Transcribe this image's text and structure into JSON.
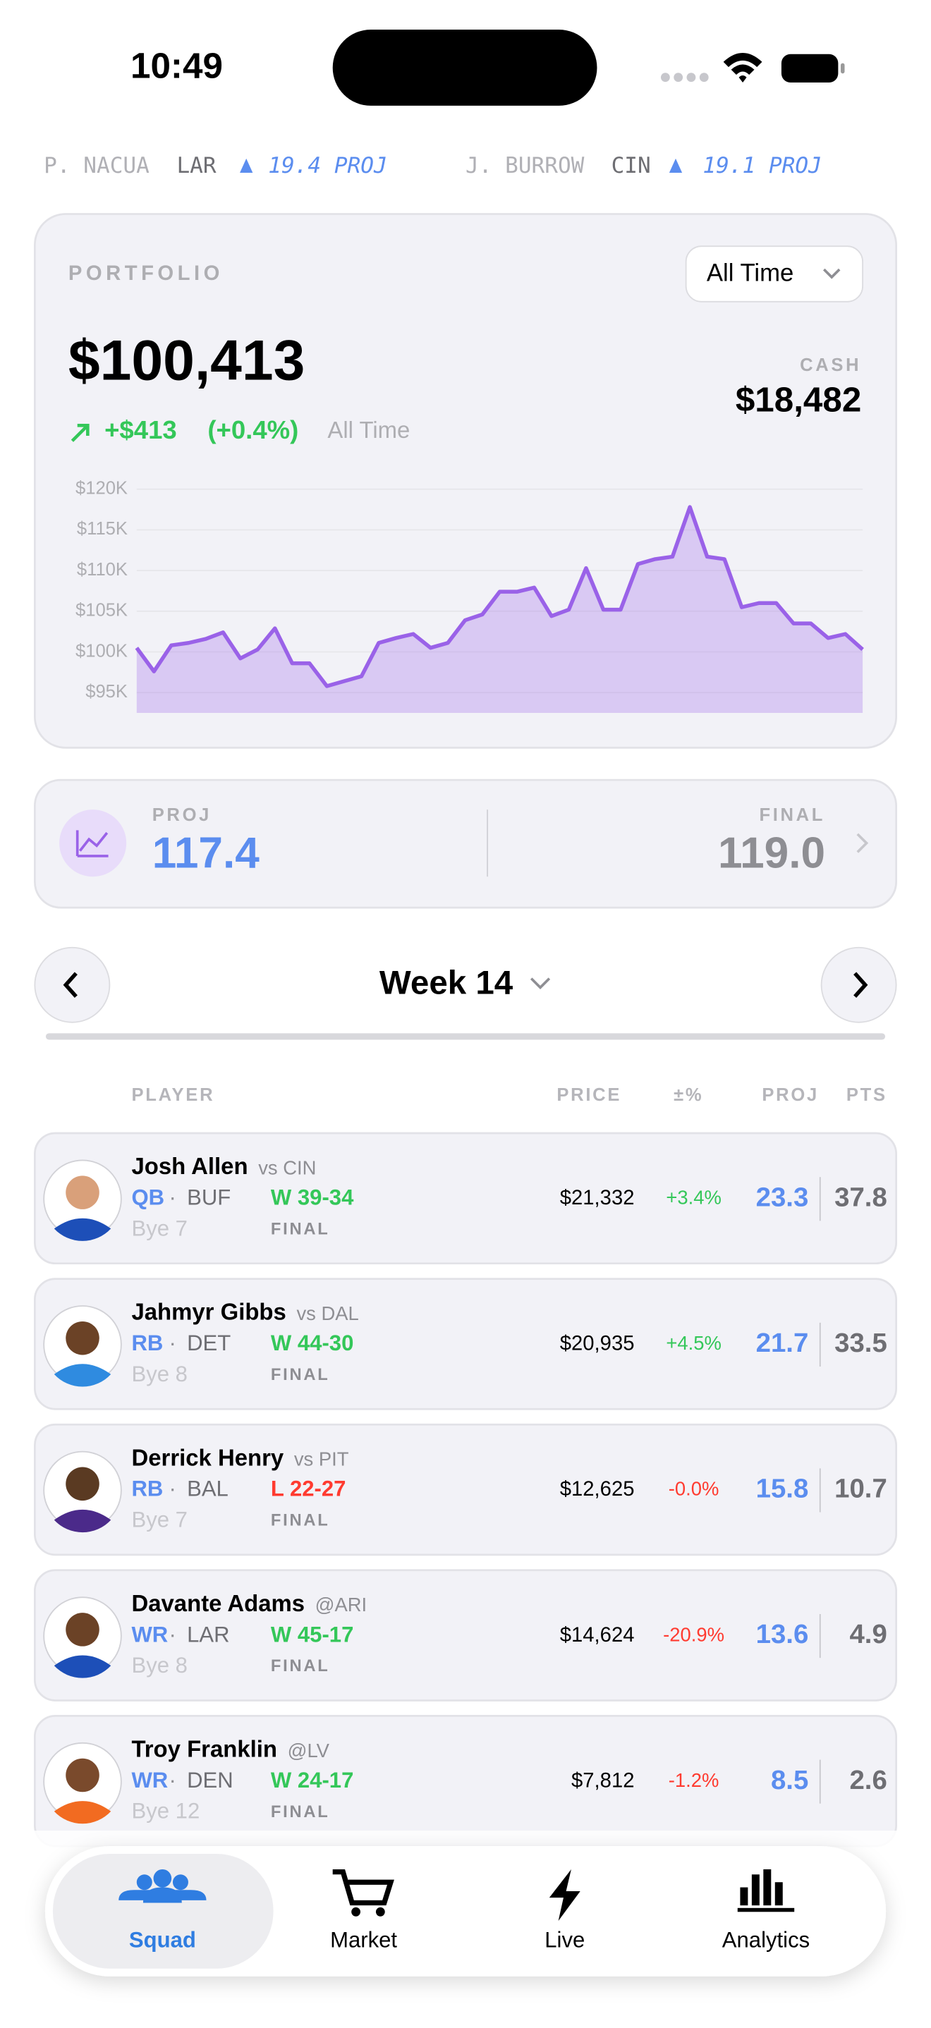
{
  "status": {
    "time": "10:49"
  },
  "ticker": [
    {
      "name": "P. NACUA",
      "team": "LAR",
      "proj": "19.4 PROJ"
    },
    {
      "name": "J. BURROW",
      "team": "CIN",
      "proj": "19.1 PROJ"
    }
  ],
  "portfolio": {
    "label": "PORTFOLIO",
    "range": "All Time",
    "value": "$100,413",
    "change": "+$413",
    "change_pct": "(+0.4%)",
    "period": "All Time",
    "cash_label": "CASH",
    "cash": "$18,482",
    "chart": {
      "type": "line",
      "color": "#9a62e8",
      "values": [
        100500,
        97600,
        100800,
        101100,
        101600,
        102400,
        99200,
        100300,
        102900,
        98600,
        98600,
        95800,
        96400,
        97000,
        101100,
        101700,
        102200,
        100500,
        101100,
        103900,
        104600,
        107400,
        107400,
        107900,
        104400,
        105200,
        110300,
        105200,
        105200,
        110800,
        111400,
        111700,
        117800,
        111700,
        111400,
        105500,
        106000,
        106000,
        103500,
        103500,
        101700,
        102200,
        100300
      ],
      "ylim": [
        92500,
        121500
      ],
      "yticks": [
        {
          "value": 95000,
          "label": "$95K"
        },
        {
          "value": 100000,
          "label": "$100K"
        },
        {
          "value": 105000,
          "label": "$105K"
        },
        {
          "value": 110000,
          "label": "$110K"
        },
        {
          "value": 115000,
          "label": "$115K"
        },
        {
          "value": 120000,
          "label": "$120K"
        }
      ],
      "grid": true
    }
  },
  "projection": {
    "proj_label": "PROJ",
    "proj": "117.4",
    "final_label": "FINAL",
    "final": "119.0"
  },
  "week": {
    "label": "Week 14"
  },
  "table": {
    "headers": [
      "PLAYER",
      "PRICE",
      "±%",
      "PROJ",
      "PTS"
    ],
    "rows": [
      {
        "name": "Josh Allen",
        "opp": "vs CIN",
        "pos": "QB",
        "team": "BUF",
        "result": "W 39-34",
        "bye": "Bye 7",
        "status": "FINAL",
        "price": "$21,332",
        "change": "+3.4%",
        "proj": "23.3",
        "pts": "37.8"
      },
      {
        "name": "Jahmyr Gibbs",
        "opp": "vs DAL",
        "pos": "RB",
        "team": "DET",
        "result": "W 44-30",
        "bye": "Bye 8",
        "status": "FINAL",
        "price": "$20,935",
        "change": "+4.5%",
        "proj": "21.7",
        "pts": "33.5"
      },
      {
        "name": "Derrick Henry",
        "opp": "vs PIT",
        "pos": "RB",
        "team": "BAL",
        "result": "L 22-27",
        "bye": "Bye 7",
        "status": "FINAL",
        "price": "$12,625",
        "change": "-0.0%",
        "proj": "15.8",
        "pts": "10.7"
      },
      {
        "name": "Davante Adams",
        "opp": "@ARI",
        "pos": "WR",
        "team": "LAR",
        "result": "W 45-17",
        "bye": "Bye 8",
        "status": "FINAL",
        "price": "$14,624",
        "change": "-20.9%",
        "proj": "13.6",
        "pts": "4.9"
      },
      {
        "name": "Troy Franklin",
        "opp": "@LV",
        "pos": "WR",
        "team": "DEN",
        "result": "W 24-17",
        "bye": "Bye 12",
        "status": "FINAL",
        "price": "$7,812",
        "change": "-1.2%",
        "proj": "8.5",
        "pts": "2.6"
      }
    ]
  },
  "tabs": [
    "Squad",
    "Market",
    "Live",
    "Analytics"
  ]
}
